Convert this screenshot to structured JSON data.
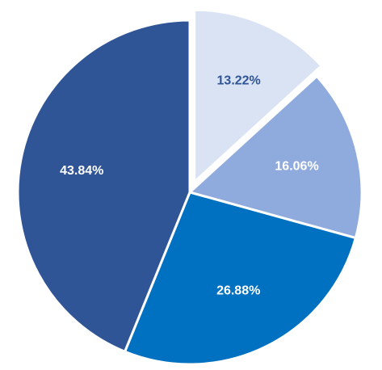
{
  "chart_data": {
    "type": "pie",
    "title": "",
    "slices": [
      {
        "value": 13.22,
        "label": "13.22%",
        "color": "#DAE3F3",
        "label_color": "#2F5597",
        "exploded": true
      },
      {
        "value": 16.06,
        "label": "16.06%",
        "color": "#8FAADC",
        "label_color": "#ffffff",
        "exploded": false
      },
      {
        "value": 26.88,
        "label": "26.88%",
        "color": "#0070C0",
        "label_color": "#ffffff",
        "exploded": false
      },
      {
        "value": 43.84,
        "label": "43.84%",
        "color": "#2F5597",
        "label_color": "#ffffff",
        "exploded": false
      }
    ],
    "start_angle": "12 o'clock",
    "direction": "clockwise",
    "legend": "none"
  }
}
